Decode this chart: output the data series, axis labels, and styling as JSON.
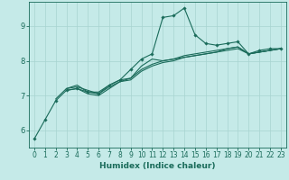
{
  "xlabel": "Humidex (Indice chaleur)",
  "bg_color": "#c5eae8",
  "line_color": "#1a6b5a",
  "grid_color": "#a8d4d0",
  "xlim": [
    -0.5,
    23.5
  ],
  "ylim": [
    5.5,
    9.7
  ],
  "yticks": [
    6,
    7,
    8,
    9
  ],
  "xticks": [
    0,
    1,
    2,
    3,
    4,
    5,
    6,
    7,
    8,
    9,
    10,
    11,
    12,
    13,
    14,
    15,
    16,
    17,
    18,
    19,
    20,
    21,
    22,
    23
  ],
  "curves": [
    {
      "x": [
        0,
        1,
        2,
        3,
        4,
        5,
        6,
        7,
        8,
        9,
        10,
        11,
        12,
        13,
        14,
        15,
        16,
        17,
        18,
        19,
        20,
        21,
        22,
        23
      ],
      "y": [
        5.75,
        6.3,
        6.85,
        7.15,
        7.2,
        7.1,
        7.05,
        7.3,
        7.45,
        7.75,
        8.05,
        8.2,
        9.25,
        9.3,
        9.52,
        8.75,
        8.5,
        8.45,
        8.5,
        8.55,
        8.2,
        8.3,
        8.35,
        8.35
      ],
      "has_markers": true
    },
    {
      "x": [
        2,
        3,
        4,
        5,
        6,
        7,
        8,
        9,
        10,
        11,
        12,
        13,
        14,
        15,
        16,
        17,
        18,
        19,
        20,
        21,
        22,
        23
      ],
      "y": [
        6.9,
        7.2,
        7.25,
        7.15,
        7.05,
        7.25,
        7.4,
        7.5,
        7.85,
        8.05,
        8.0,
        8.05,
        8.1,
        8.15,
        8.2,
        8.25,
        8.35,
        8.4,
        8.2,
        8.25,
        8.3,
        8.35
      ],
      "has_markers": false
    },
    {
      "x": [
        3,
        4,
        5,
        6,
        7,
        8,
        9,
        10,
        11,
        12,
        13,
        14,
        15,
        16,
        17,
        18,
        19,
        20,
        21,
        22,
        23
      ],
      "y": [
        7.2,
        7.3,
        7.1,
        7.1,
        7.3,
        7.45,
        7.5,
        7.75,
        7.9,
        8.0,
        8.05,
        8.15,
        8.2,
        8.25,
        8.3,
        8.35,
        8.4,
        8.2,
        8.25,
        8.3,
        8.35
      ],
      "has_markers": false
    },
    {
      "x": [
        3,
        4,
        5,
        6,
        7,
        8,
        9,
        10,
        11,
        12,
        13,
        14,
        15,
        16,
        17,
        18,
        19,
        20,
        21,
        22,
        23
      ],
      "y": [
        7.15,
        7.2,
        7.05,
        7.0,
        7.2,
        7.4,
        7.45,
        7.7,
        7.85,
        7.95,
        8.0,
        8.1,
        8.15,
        8.2,
        8.25,
        8.3,
        8.35,
        8.2,
        8.25,
        8.3,
        8.35
      ],
      "has_markers": false
    }
  ],
  "marker": "D",
  "markersize": 1.8,
  "linewidth": 0.8,
  "xlabel_fontsize": 6.5,
  "tick_fontsize": 5.5
}
